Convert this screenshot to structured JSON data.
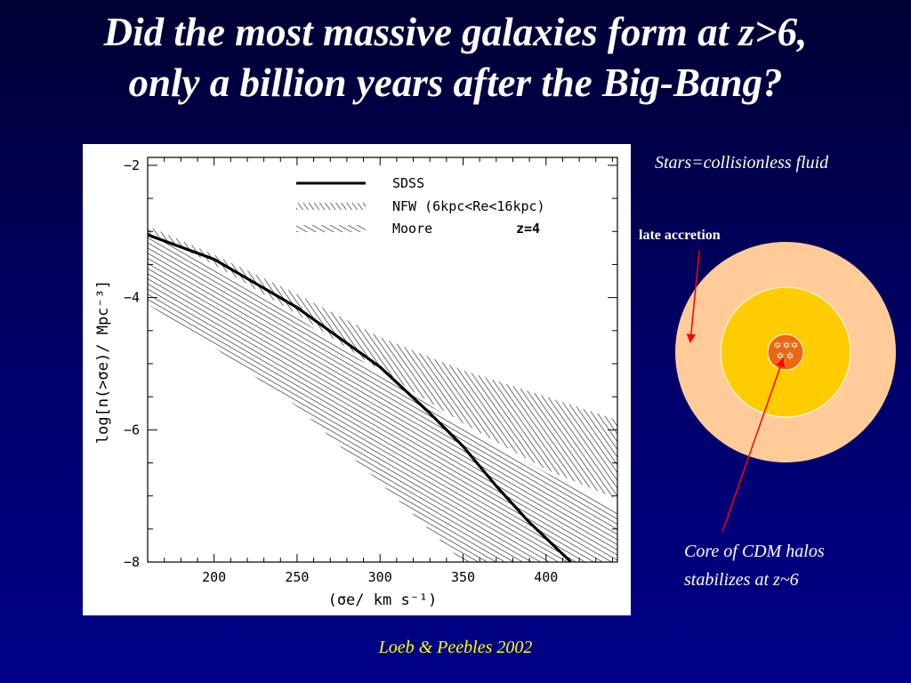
{
  "slide": {
    "title_line1": "Did the most massive galaxies form at z>6,",
    "title_line2": "only a billion years after the Big-Bang?",
    "citation": "Loeb & Peebles 2002"
  },
  "diagram": {
    "stars_note": "Stars=collisionless fluid",
    "late_accretion": "late accretion",
    "core_note_line1": "Core of CDM halos",
    "core_note_line2": "stabilizes at z~6",
    "colors": {
      "outer_halo": "#ffcc99",
      "mid_halo": "#ffcc00",
      "core": "#ee6611",
      "arrow": "#ff0000",
      "title": "#ffffff",
      "citation": "#ffff00"
    }
  },
  "chart_data": {
    "type": "line",
    "xlabel": "(σe/ km s⁻¹)",
    "ylabel": "log[n(>σe)/ Mpc⁻³]",
    "xlim": [
      160,
      443
    ],
    "ylim": [
      -8,
      -1.88
    ],
    "x_ticks": [
      200,
      250,
      300,
      350,
      400
    ],
    "y_ticks": [
      -8,
      -6,
      -4,
      -2
    ],
    "x_tick_labels": [
      "200",
      "250",
      "300",
      "350",
      "400"
    ],
    "y_tick_labels": [
      "−8",
      "−6",
      "−4",
      "−2"
    ],
    "legend": {
      "placement": "top-right",
      "entries": [
        "SDSS",
        "NFW (6kpc<Re<16kpc)",
        "Moore"
      ],
      "redshift_label": "z=4"
    },
    "series": [
      {
        "name": "SDSS",
        "style": "solid",
        "x": [
          160,
          200,
          250,
          300,
          330,
          350,
          370,
          390,
          415
        ],
        "y": [
          -3.05,
          -3.42,
          -4.15,
          -5.05,
          -5.75,
          -6.25,
          -6.85,
          -7.4,
          -8.0
        ]
      },
      {
        "name": "NFW (6kpc<Re<16kpc)",
        "style": "hatched-band",
        "x": [
          160,
          200,
          250,
          300,
          350,
          400,
          443
        ],
        "y_upper": [
          -2.92,
          -3.35,
          -3.95,
          -4.6,
          -5.1,
          -5.5,
          -5.85
        ],
        "y_lower": [
          -3.0,
          -3.5,
          -4.25,
          -5.1,
          -5.9,
          -6.6,
          -7.05
        ]
      },
      {
        "name": "Moore",
        "style": "hatched-band",
        "x": [
          160,
          200,
          250,
          300,
          350,
          400,
          443
        ],
        "y_upper": [
          -3.0,
          -3.55,
          -4.3,
          -5.15,
          -5.95,
          -6.65,
          -7.2
        ],
        "y_lower": [
          -4.1,
          -4.75,
          -5.65,
          -6.8,
          -8.0,
          -8.0,
          -8.0
        ]
      }
    ]
  }
}
